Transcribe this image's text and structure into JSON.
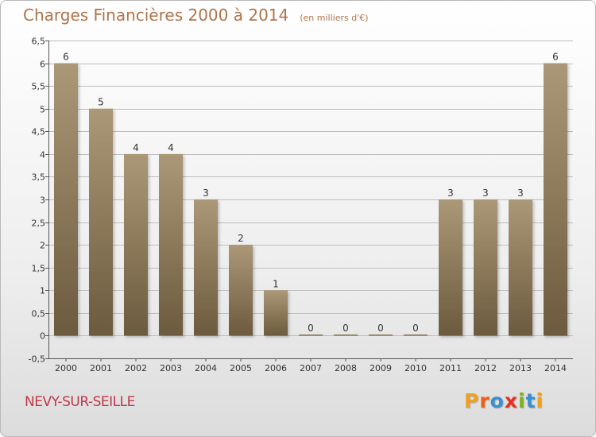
{
  "header": {
    "title": "Charges Financières 2000 à 2014",
    "subtitle": "(en milliers d'€)"
  },
  "footer": {
    "commune": "NEVY-SUR-SEILLE",
    "logo_text": "Proxiti",
    "logo_colors": [
      "#f0a020",
      "#f06010",
      "#3a8fd0",
      "#e83020",
      "#80b020",
      "#3a8fd0",
      "#f0a020"
    ]
  },
  "colors": {
    "bar_light": "#ab9877",
    "bar_dark": "#6c5a3e",
    "title": "#b0734a",
    "commune": "#c1384a",
    "grid": "#bdbdbd"
  },
  "chart_data": {
    "type": "bar",
    "categories": [
      "2000",
      "2001",
      "2002",
      "2003",
      "2004",
      "2005",
      "2006",
      "2007",
      "2008",
      "2009",
      "2010",
      "2011",
      "2012",
      "2013",
      "2014"
    ],
    "values": [
      6,
      5,
      4,
      4,
      3,
      2,
      1,
      0,
      0,
      0,
      0,
      3,
      3,
      3,
      6
    ],
    "data_labels": [
      "6",
      "5",
      "4",
      "4",
      "3",
      "2",
      "1",
      "0",
      "0",
      "0",
      "0",
      "3",
      "3",
      "3",
      "6"
    ],
    "title": "Charges Financières 2000 à 2014",
    "subtitle": "(en milliers d'€)",
    "ylim": [
      -0.5,
      6.5
    ],
    "yticks": [
      -0.5,
      0,
      0.5,
      1,
      1.5,
      2,
      2.5,
      3,
      3.5,
      4,
      4.5,
      5,
      5.5,
      6,
      6.5
    ],
    "ytick_labels": [
      "-0,5",
      "0",
      "0,5",
      "1",
      "1,5",
      "2",
      "2,5",
      "3",
      "3,5",
      "4",
      "4,5",
      "5",
      "5,5",
      "6",
      "6,5"
    ],
    "grid": true,
    "legend": "none"
  }
}
